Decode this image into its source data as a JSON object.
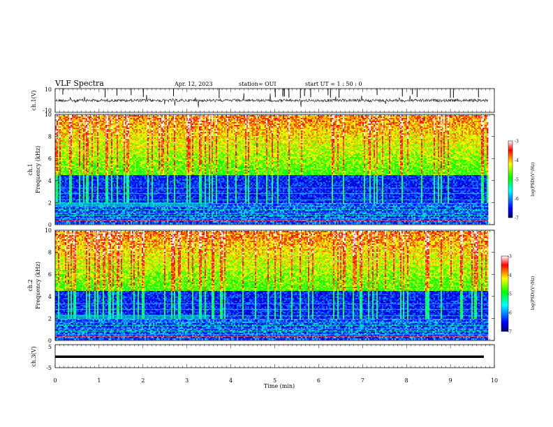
{
  "header": {
    "title": "VLF Spectra",
    "date": "Apr. 12, 2023",
    "station": "station= OUI",
    "start": "start  UT =   1 : 50 : 0"
  },
  "chart_data": [
    {
      "type": "line",
      "name": "ch.1 waveform",
      "ylabel": "ch.1(V)",
      "ylim": [
        -10,
        10
      ],
      "yticks": [
        "10",
        "-10"
      ],
      "xlim": [
        0,
        10
      ],
      "baseline": 0,
      "color": "#000000"
    },
    {
      "type": "heatmap",
      "ylabel_top": "ch.1",
      "ylabel": "Frequency (kHz)",
      "ylim": [
        0,
        10
      ],
      "yticks": [
        "0",
        "2",
        "4",
        "6",
        "8",
        "10"
      ],
      "xlim": [
        0,
        9.85
      ],
      "colorbar": {
        "label": "log(PSD)(V²/Hz)",
        "ticks": [
          "-3",
          "-4",
          "-5",
          "-6",
          "-7"
        ],
        "range": [
          -7,
          -3
        ]
      }
    },
    {
      "type": "heatmap",
      "ylabel_top": "ch.2",
      "ylabel": "Frequency (kHz)",
      "ylim": [
        0,
        10
      ],
      "yticks": [
        "0",
        "2",
        "4",
        "6",
        "8",
        "10"
      ],
      "xlim": [
        0,
        9.85
      ],
      "colorbar": {
        "label": "log(PSD)(V²/Hz)",
        "ticks": [
          "-3",
          "-4",
          "-5",
          "-6",
          "-7"
        ],
        "range": [
          -7,
          -3
        ]
      }
    },
    {
      "type": "line",
      "name": "ch.3 waveform",
      "ylabel": "ch.3(V)",
      "ylim": [
        -5,
        5
      ],
      "yticks": [
        "5",
        "-5"
      ],
      "xlim": [
        0,
        10
      ],
      "baseline": 0,
      "color": "#000000"
    }
  ],
  "xaxis": {
    "label": "Time (min)",
    "range": [
      0,
      10
    ],
    "ticks": [
      "0",
      "1",
      "2",
      "3",
      "4",
      "5",
      "6",
      "7",
      "8",
      "9",
      "10"
    ]
  },
  "colormap": [
    "#000070",
    "#0000ff",
    "#00ffff",
    "#00ff00",
    "#ffff00",
    "#ff0000",
    "#ffffff"
  ]
}
